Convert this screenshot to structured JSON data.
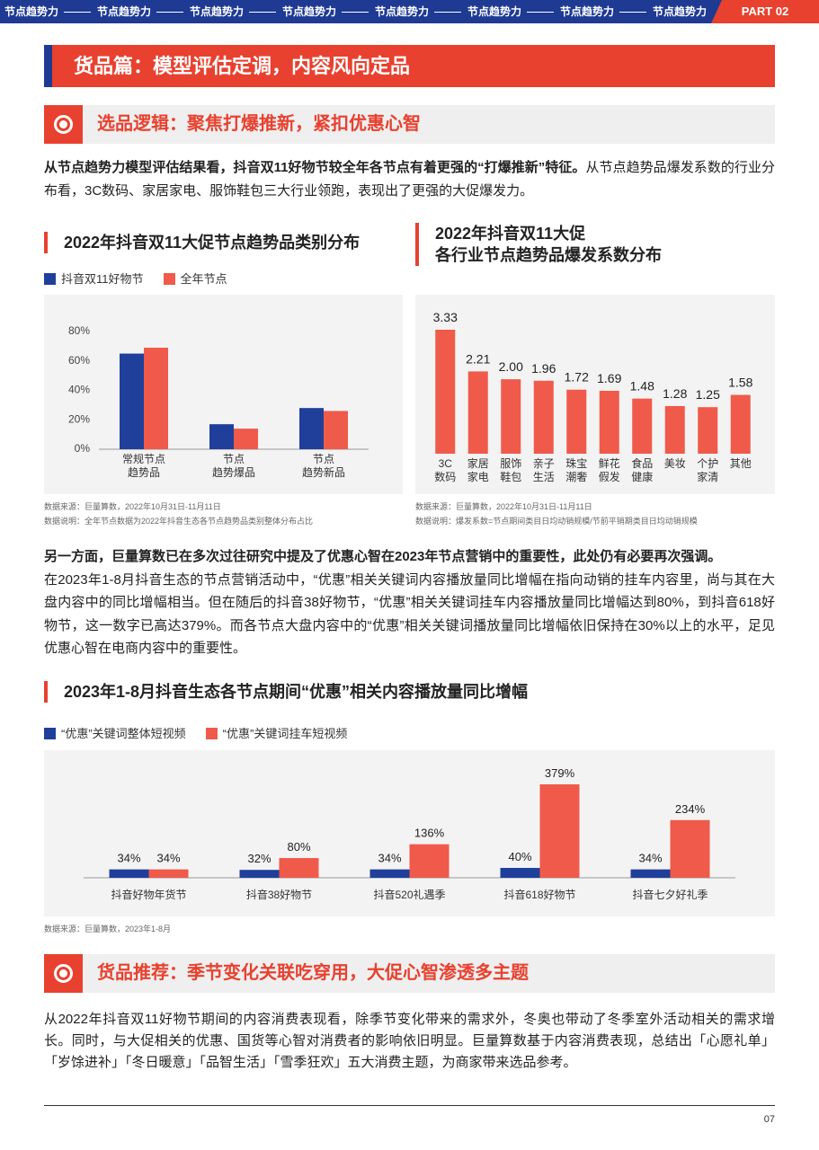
{
  "header": {
    "tabs": [
      "节点趋势力",
      "节点趋势力",
      "节点趋势力",
      "节点趋势力",
      "节点趋势力",
      "节点趋势力",
      "节点趋势力",
      "节点趋势力"
    ],
    "part": "PART 02"
  },
  "section_title": "货品篇：模型评估定调，内容风向定品",
  "subsections": [
    {
      "title": "选品逻辑：聚焦打爆推新，紧扣优惠心智"
    },
    {
      "title": "货品推荐：季节变化关联吃穿用，大促心智渗透多主题"
    }
  ],
  "paragraphs": [
    {
      "bold": "从节点趋势力模型评估结果看，抖音双11好物节较全年各节点有着更强的“打爆推新”特征。",
      "text": "从节点趋势品爆发系数的行业分布看，3C数码、家居家电、服饰鞋包三大行业领跑，表现出了更强的大促爆发力。"
    },
    {
      "bold": "另一方面，巨量算数已在多次过往研究中提及了优惠心智在2023年节点营销中的重要性，此处仍有必要再次强调。",
      "text": "在2023年1-8月抖音生态的节点营销活动中，“优惠”相关关键词内容播放量同比增幅在指向动销的挂车内容里，尚与其在大盘内容中的同比增幅相当。但在随后的抖音38好物节，“优惠”相关关键词挂车内容播放量同比增幅达到80%，到抖音618好物节，这一数字已高达379%。而各节点大盘内容中的“优惠”相关关键词播放量同比增幅依旧保持在30%以上的水平，足见优惠心智在电商内容中的重要性。"
    },
    {
      "text": "从2022年抖音双11好物节期间的内容消费表现看，除季节变化带来的需求外，冬奥也带动了冬季室外活动相关的需求增长。同时，与大促相关的优惠、国货等心智对消费者的影响依旧明显。巨量算数基于内容消费表现，总结出「心愿礼单」「岁馀进补」「冬日暖意」「品智生活」「雪季狂欢」五大消费主题，为商家带来选品参考。"
    }
  ],
  "chart_data": [
    {
      "type": "grouped-bar",
      "title": "2022年抖音双11大促节点趋势品类别分布",
      "categories": [
        "常规节点\n趋势品",
        "节点\n趋势爆品",
        "节点\n趋势新品"
      ],
      "series": [
        {
          "name": "抖音双11好物节",
          "color": "#203f9a",
          "values": [
            65,
            17,
            28
          ]
        },
        {
          "name": "全年节点",
          "color": "#ef5a4b",
          "values": [
            69,
            14,
            26
          ]
        }
      ],
      "ylim": [
        0,
        80
      ],
      "yticks": [
        {
          "value": 0,
          "label": "0%"
        },
        {
          "value": 20,
          "label": "20%"
        },
        {
          "value": 40,
          "label": "40%"
        },
        {
          "value": 60,
          "label": "60%"
        },
        {
          "value": 80,
          "label": "80%"
        }
      ],
      "notes": [
        "数据来源：巨量算数，2022年10月31日-11月11日",
        "数据说明：全年节点数据为2022年抖音生态各节点趋势品类别整体分布占比"
      ]
    },
    {
      "type": "bar",
      "title": "2022年抖音双11大促\n各行业节点趋势品爆发系数分布",
      "categories": [
        "3C\n数码",
        "家居\n家电",
        "服饰\n鞋包",
        "亲子\n生活",
        "珠宝\n潮奢",
        "鲜花\n假发",
        "食品\n健康",
        "美妆",
        "个护\n家清",
        "其他"
      ],
      "values": [
        3.33,
        2.21,
        2.0,
        1.96,
        1.72,
        1.69,
        1.48,
        1.28,
        1.25,
        1.58
      ],
      "value_labels": [
        "3.33",
        "2.21",
        "2.00",
        "1.96",
        "1.72",
        "1.69",
        "1.48",
        "1.28",
        "1.25",
        "1.58"
      ],
      "color": "#ef5a4b",
      "notes": [
        "数据来源：巨量算数，2022年10月31日-11月11日",
        "数据说明：爆发系数=节点期间类目日均动销规模/节前平销期类目日均动销规模"
      ]
    },
    {
      "type": "grouped-bar",
      "title": "2023年1-8月抖音生态各节点期间“优惠”相关内容播放量同比增幅",
      "categories": [
        "抖音好物年货节",
        "抖音38好物节",
        "抖音520礼遇季",
        "抖音618好物节",
        "抖音七夕好礼季"
      ],
      "series": [
        {
          "name": "“优惠”关键词整体短视频",
          "color": "#203f9a",
          "values": [
            34,
            32,
            34,
            40,
            34
          ],
          "value_labels": [
            "34%",
            "32%",
            "34%",
            "40%",
            "34%"
          ]
        },
        {
          "name": "“优惠”关键词挂车短视频",
          "color": "#ef5a4b",
          "values": [
            34,
            80,
            136,
            379,
            234
          ],
          "value_labels": [
            "34%",
            "80%",
            "136%",
            "379%",
            "234%"
          ]
        }
      ],
      "notes": [
        "数据来源：巨量算数，2023年1-8月"
      ]
    }
  ],
  "footer": {
    "page": "07"
  }
}
